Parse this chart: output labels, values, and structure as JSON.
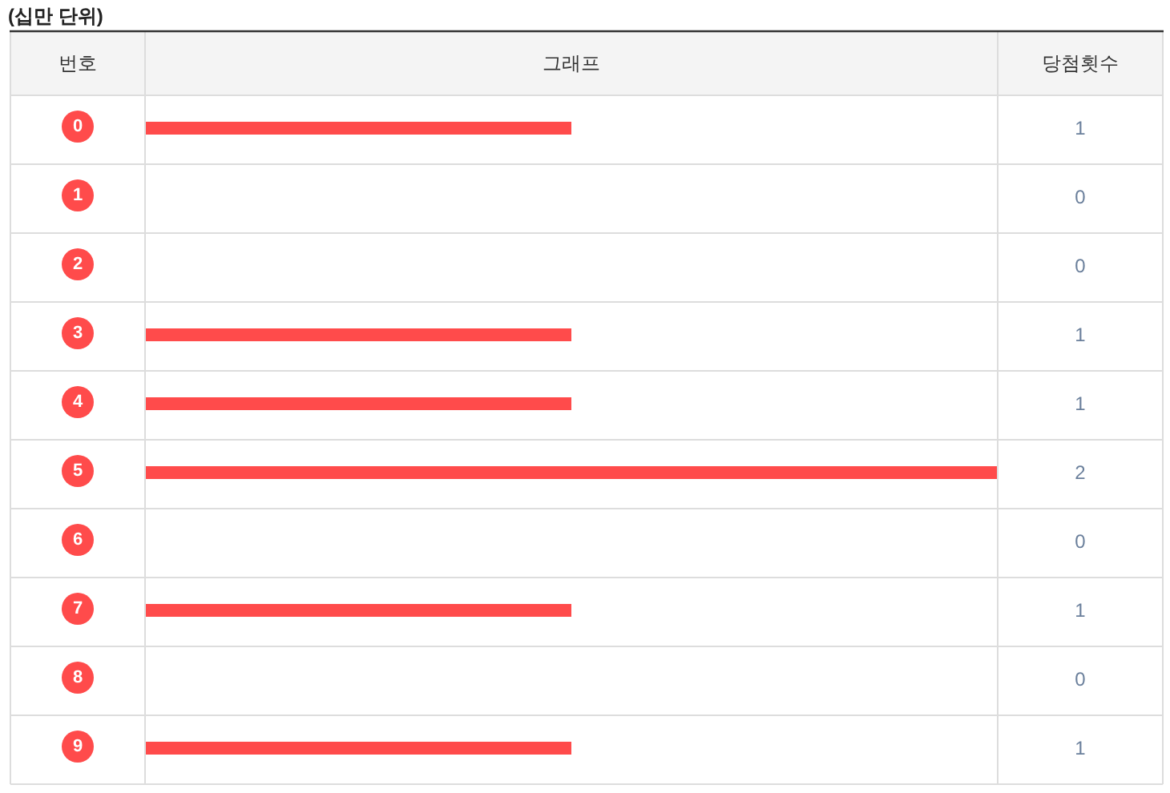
{
  "chart_data": {
    "type": "bar",
    "orientation": "horizontal",
    "title": "(십만 단위)",
    "ylabel": "번호",
    "xlabel": "그래프",
    "annotations": [
      "당첨횟수"
    ],
    "categories": [
      "0",
      "1",
      "2",
      "3",
      "4",
      "5",
      "6",
      "7",
      "8",
      "9"
    ],
    "values": [
      1,
      0,
      0,
      1,
      1,
      2,
      0,
      1,
      0,
      1
    ],
    "color": "#ff4b4b",
    "data_labels": true
  }
}
